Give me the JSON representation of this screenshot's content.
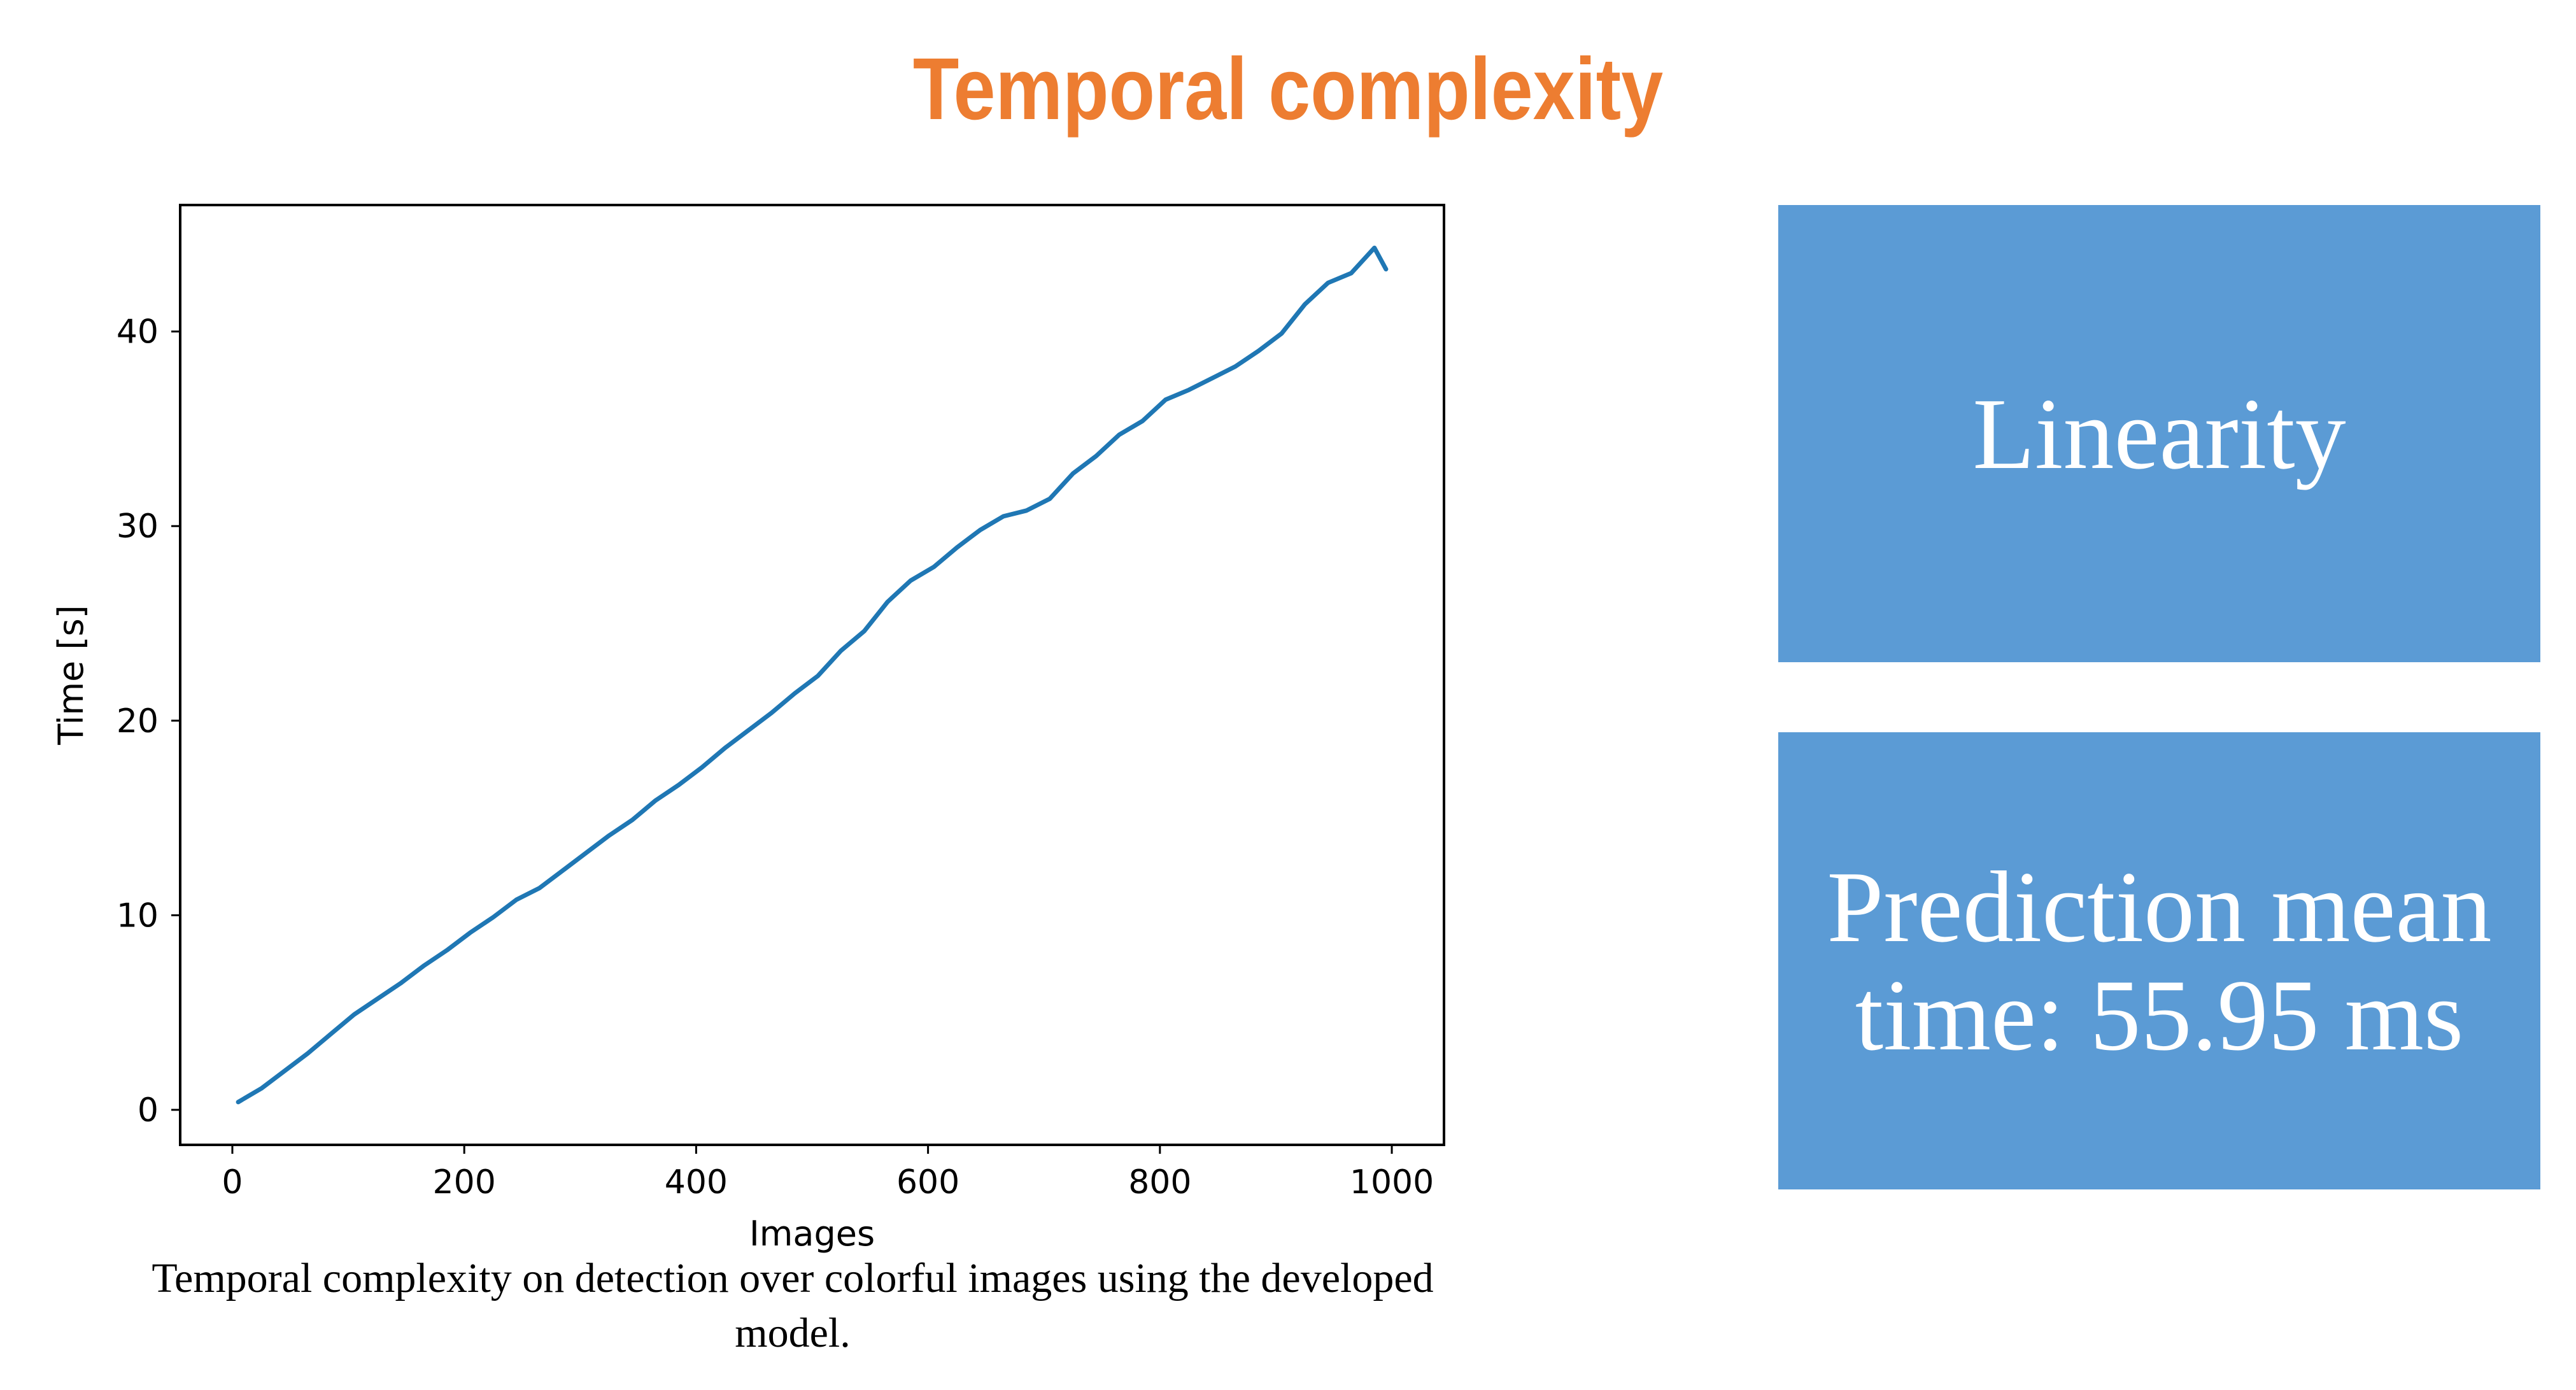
{
  "slide": {
    "title": "Temporal complexity",
    "caption": "Temporal complexity on detection over colorful images using the developed model.",
    "accent_color": "#ED7D31",
    "box_color": "#5B9BD5"
  },
  "boxes": [
    {
      "text": "Linearity"
    },
    {
      "text": "Prediction mean time: 55.95 ms"
    }
  ],
  "chart_data": {
    "type": "line",
    "xlabel": "Images",
    "ylabel": "Time [s]",
    "xlim": [
      -45,
      1045
    ],
    "ylim": [
      -1.8,
      46.5
    ],
    "xticks": [
      0,
      200,
      400,
      600,
      800,
      1000
    ],
    "yticks": [
      0,
      10,
      20,
      30,
      40
    ],
    "grid": false,
    "series": [
      {
        "color": "#1f77b4",
        "x": [
          5,
          25,
          45,
          65,
          85,
          105,
          125,
          145,
          165,
          185,
          205,
          225,
          245,
          265,
          285,
          305,
          325,
          345,
          365,
          385,
          405,
          425,
          445,
          465,
          485,
          505,
          525,
          545,
          565,
          585,
          605,
          625,
          645,
          665,
          685,
          705,
          725,
          745,
          765,
          785,
          805,
          825,
          845,
          865,
          885,
          905,
          925,
          945,
          965,
          985,
          995
        ],
        "y": [
          0.4,
          1.1,
          2.0,
          2.9,
          3.9,
          4.9,
          5.7,
          6.5,
          7.4,
          8.2,
          9.1,
          9.9,
          10.8,
          11.4,
          12.3,
          13.2,
          14.1,
          14.9,
          15.9,
          16.7,
          17.6,
          18.6,
          19.5,
          20.4,
          21.4,
          22.3,
          23.6,
          24.6,
          26.1,
          27.2,
          27.9,
          28.9,
          29.8,
          30.5,
          30.8,
          31.4,
          32.7,
          33.6,
          34.7,
          35.4,
          36.5,
          37.0,
          37.6,
          38.2,
          39.0,
          39.9,
          41.4,
          42.5,
          43.0,
          44.3,
          43.2
        ]
      }
    ]
  }
}
